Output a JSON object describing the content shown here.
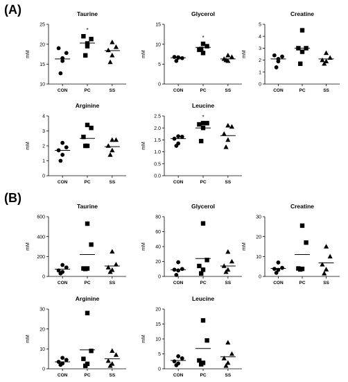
{
  "panels": [
    {
      "label": "(A)"
    },
    {
      "label": "(B)"
    }
  ],
  "chart_data": [
    {
      "type": "scatter",
      "panel": "(A)",
      "title": "Taurine",
      "ylabel": "mM",
      "categories": [
        "CON",
        "PC",
        "SS"
      ],
      "ylim": [
        10,
        25
      ],
      "yticks": [
        10,
        15,
        20,
        25
      ],
      "tick_labels": [
        "10",
        "15",
        "20",
        "25"
      ],
      "points": [
        [
          16.5,
          17.8,
          19.0,
          15.8,
          12.7
        ],
        [
          20.2,
          21.3,
          22.0,
          19.5,
          17.2
        ],
        [
          20.5,
          19.3,
          18.5,
          17.2,
          15.5
        ]
      ],
      "means": [
        16.3,
        20.3,
        18.4
      ],
      "significance": [
        "",
        "*",
        ""
      ]
    },
    {
      "type": "scatter",
      "panel": "(A)",
      "title": "Glycerol",
      "ylabel": "mM",
      "categories": [
        "CON",
        "PC",
        "SS"
      ],
      "ylim": [
        0,
        15
      ],
      "yticks": [
        0,
        5,
        10,
        15
      ],
      "tick_labels": [
        "0",
        "5",
        "10",
        "15"
      ],
      "points": [
        [
          6.7,
          6.5,
          6.8,
          6.6,
          5.8
        ],
        [
          10.1,
          9.5,
          8.6,
          7.8,
          8.8
        ],
        [
          7.2,
          6.8,
          6.3,
          5.8,
          6.0
        ]
      ],
      "means": [
        6.6,
        9.2,
        6.3
      ],
      "significance": [
        "",
        "*",
        ""
      ]
    },
    {
      "type": "scatter",
      "panel": "(A)",
      "title": "Creatine",
      "ylabel": "mM",
      "categories": [
        "CON",
        "PC",
        "SS"
      ],
      "ylim": [
        0,
        5
      ],
      "yticks": [
        0,
        1,
        2,
        3,
        4,
        5
      ],
      "tick_labels": [
        "0",
        "1",
        "2",
        "3",
        "4",
        "5"
      ],
      "points": [
        [
          2.1,
          2.3,
          2.4,
          1.9,
          1.4
        ],
        [
          4.5,
          3.0,
          3.0,
          2.7,
          1.7
        ],
        [
          2.6,
          2.2,
          2.0,
          1.9,
          1.7
        ]
      ],
      "means": [
        2.1,
        3.0,
        2.1
      ],
      "significance": [
        "",
        "",
        ""
      ]
    },
    {
      "type": "scatter",
      "panel": "(A)",
      "title": "Arginine",
      "ylabel": "mM",
      "categories": [
        "CON",
        "PC",
        "SS"
      ],
      "ylim": [
        0,
        4
      ],
      "yticks": [
        0,
        1,
        2,
        3,
        4
      ],
      "tick_labels": [
        "0",
        "1",
        "2",
        "3",
        "4"
      ],
      "points": [
        [
          2.2,
          1.9,
          1.7,
          1.4,
          1.0
        ],
        [
          3.4,
          3.2,
          2.6,
          2.0,
          2.0
        ],
        [
          2.4,
          2.4,
          2.0,
          1.7,
          1.4
        ]
      ],
      "means": [
        1.7,
        2.5,
        1.95
      ],
      "significance": [
        "",
        "",
        ""
      ]
    },
    {
      "type": "scatter",
      "panel": "(A)",
      "title": "Leucine",
      "ylabel": "mM",
      "categories": [
        "CON",
        "PC",
        "SS"
      ],
      "ylim": [
        0,
        2.5
      ],
      "yticks": [
        0,
        0.5,
        1.0,
        1.5,
        2.0,
        2.5
      ],
      "tick_labels": [
        "0.0",
        "0.5",
        "1.0",
        "1.5",
        "2.0",
        "2.5"
      ],
      "points": [
        [
          1.65,
          1.63,
          1.55,
          1.35,
          1.25
        ],
        [
          2.2,
          2.2,
          2.15,
          2.0,
          1.45
        ],
        [
          2.1,
          2.05,
          1.75,
          1.5,
          1.2
        ]
      ],
      "means": [
        1.55,
        2.0,
        1.68
      ],
      "significance": [
        "",
        "*",
        ""
      ]
    },
    {
      "type": "scatter",
      "panel": "(B)",
      "title": "Taurine",
      "ylabel": "mM",
      "categories": [
        "CON",
        "PC",
        "SS"
      ],
      "ylim": [
        0,
        600
      ],
      "yticks": [
        0,
        200,
        400,
        600
      ],
      "tick_labels": [
        "0",
        "200",
        "400",
        "600"
      ],
      "points": [
        [
          115,
          90,
          60,
          45,
          30
        ],
        [
          530,
          320,
          80,
          80,
          75
        ],
        [
          250,
          120,
          90,
          65,
          45
        ]
      ],
      "means": [
        72,
        220,
        105
      ],
      "significance": [
        "",
        "",
        ""
      ]
    },
    {
      "type": "scatter",
      "panel": "(B)",
      "title": "Glycerol",
      "ylabel": "mM",
      "categories": [
        "CON",
        "PC",
        "SS"
      ],
      "ylim": [
        0,
        80
      ],
      "yticks": [
        0,
        20,
        40,
        60,
        80
      ],
      "tick_labels": [
        "0",
        "20",
        "40",
        "60",
        "80"
      ],
      "points": [
        [
          19,
          10,
          9,
          8,
          2
        ],
        [
          71,
          22,
          14,
          9,
          4
        ],
        [
          33,
          20,
          14,
          9,
          6
        ]
      ],
      "means": [
        9,
        24,
        14
      ],
      "significance": [
        "",
        "",
        ""
      ]
    },
    {
      "type": "scatter",
      "panel": "(B)",
      "title": "Creatine",
      "ylabel": "mM",
      "categories": [
        "CON",
        "PC",
        "SS"
      ],
      "ylim": [
        0,
        30
      ],
      "yticks": [
        0,
        10,
        20,
        30
      ],
      "tick_labels": [
        "0",
        "10",
        "20",
        "30"
      ],
      "points": [
        [
          7.0,
          4.3,
          3.8,
          3.3,
          1.8
        ],
        [
          25.5,
          17.0,
          4.0,
          3.8,
          3.5
        ],
        [
          15.0,
          10.0,
          6.0,
          3.5,
          1.5
        ]
      ],
      "means": [
        4.0,
        11.0,
        6.8
      ],
      "significance": [
        "",
        "",
        ""
      ]
    },
    {
      "type": "scatter",
      "panel": "(B)",
      "title": "Arginine",
      "ylabel": "mM",
      "categories": [
        "CON",
        "PC",
        "SS"
      ],
      "ylim": [
        0,
        30
      ],
      "yticks": [
        0,
        10,
        20,
        30
      ],
      "tick_labels": [
        "0",
        "10",
        "20",
        "30"
      ],
      "points": [
        [
          5.5,
          4.5,
          3.5,
          2.7,
          2.0
        ],
        [
          28.0,
          9.0,
          5.0,
          2.5,
          1.5
        ],
        [
          9.0,
          7.0,
          4.0,
          2.5,
          1.5
        ]
      ],
      "means": [
        3.5,
        9.5,
        5.0
      ],
      "significance": [
        "",
        "",
        ""
      ]
    },
    {
      "type": "scatter",
      "panel": "(B)",
      "title": "Leucine",
      "ylabel": "mM",
      "categories": [
        "CON",
        "PC",
        "SS"
      ],
      "ylim": [
        0,
        20
      ],
      "yticks": [
        0,
        5,
        10,
        15,
        20
      ],
      "tick_labels": [
        "0",
        "5",
        "10",
        "15",
        "20"
      ],
      "points": [
        [
          4.2,
          3.5,
          2.5,
          1.8,
          1.2
        ],
        [
          16.2,
          9.5,
          2.8,
          2.0,
          1.5
        ],
        [
          8.8,
          5.0,
          3.5,
          2.0,
          1.0
        ]
      ],
      "means": [
        2.8,
        6.8,
        4.0
      ],
      "significance": [
        "",
        "",
        ""
      ]
    }
  ]
}
